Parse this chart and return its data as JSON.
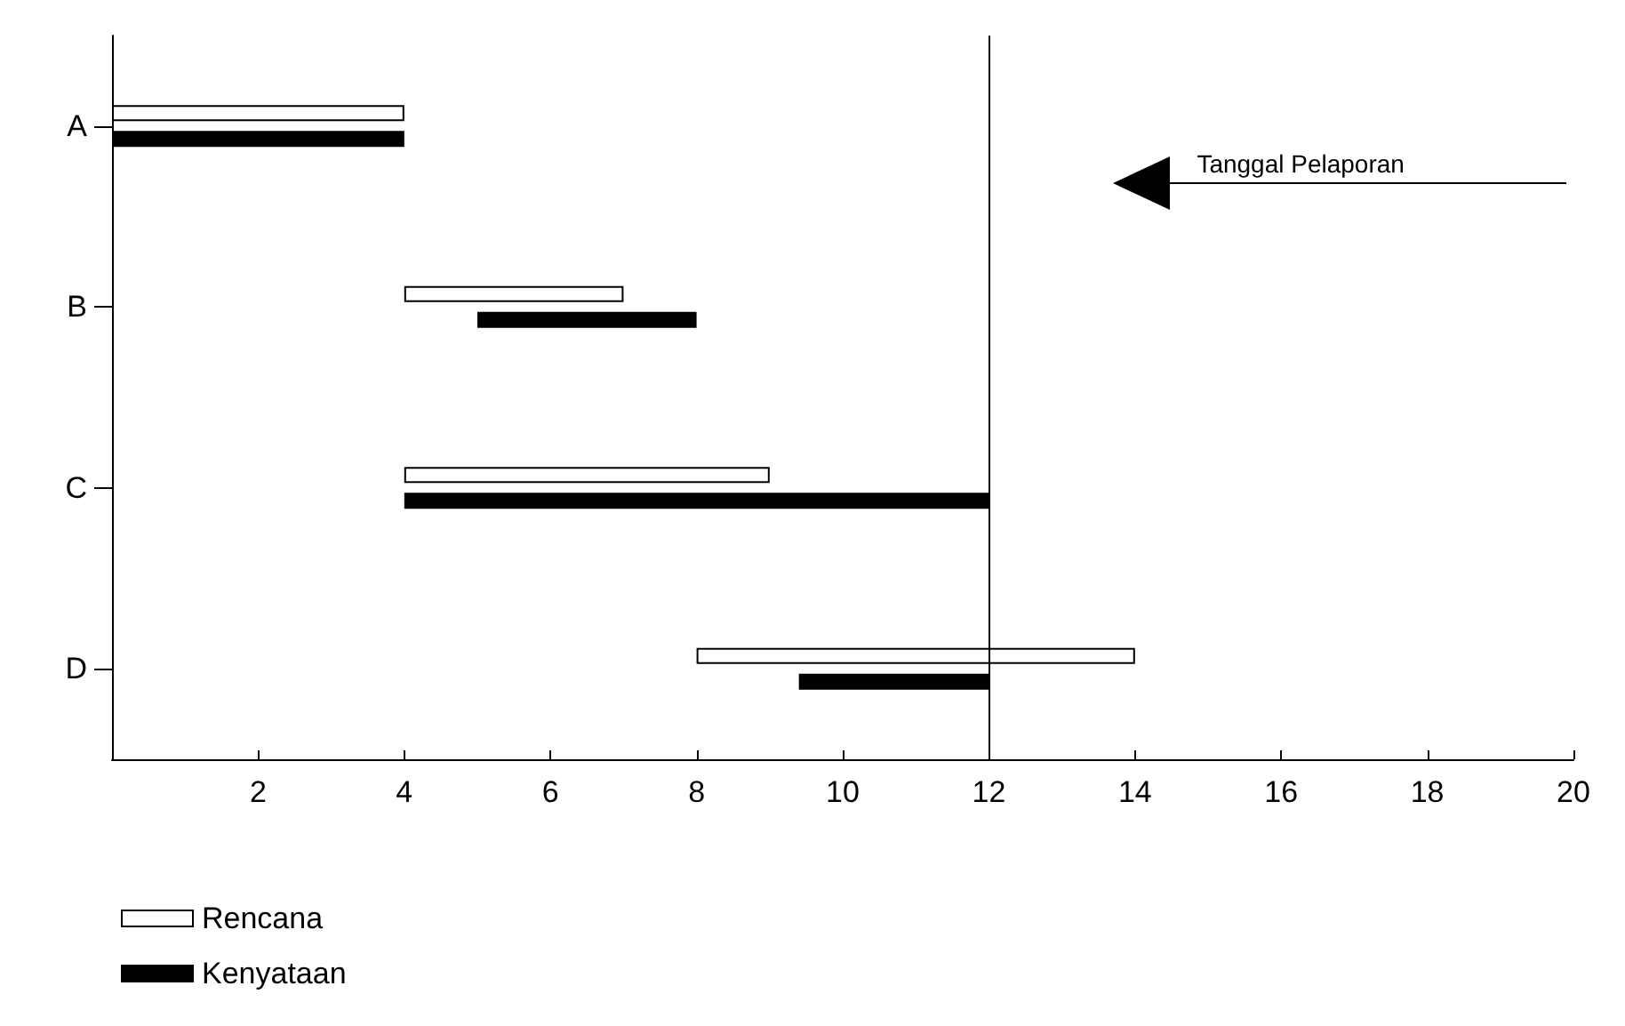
{
  "chart_data": {
    "type": "bar",
    "orientation": "horizontal",
    "categories": [
      "A",
      "B",
      "C",
      "D"
    ],
    "series": [
      {
        "name": "Rencana",
        "color": "#ffffff",
        "base": [
          0,
          4,
          4,
          8
        ],
        "values": [
          4,
          3,
          5,
          6
        ]
      },
      {
        "name": "Kenyataan",
        "color": "#000000",
        "base": [
          0,
          5,
          4,
          9.4
        ],
        "values": [
          4,
          3,
          8,
          2.6
        ]
      }
    ],
    "xlim": [
      0,
      20
    ],
    "xticks": [
      2,
      4,
      6,
      8,
      10,
      12,
      14,
      16,
      18,
      20
    ],
    "grid": false,
    "legend": "bottom left",
    "ref_lines": [
      {
        "axis": "x",
        "value": 12
      }
    ],
    "annotations": [
      "Tanggal Pelaporan"
    ]
  }
}
